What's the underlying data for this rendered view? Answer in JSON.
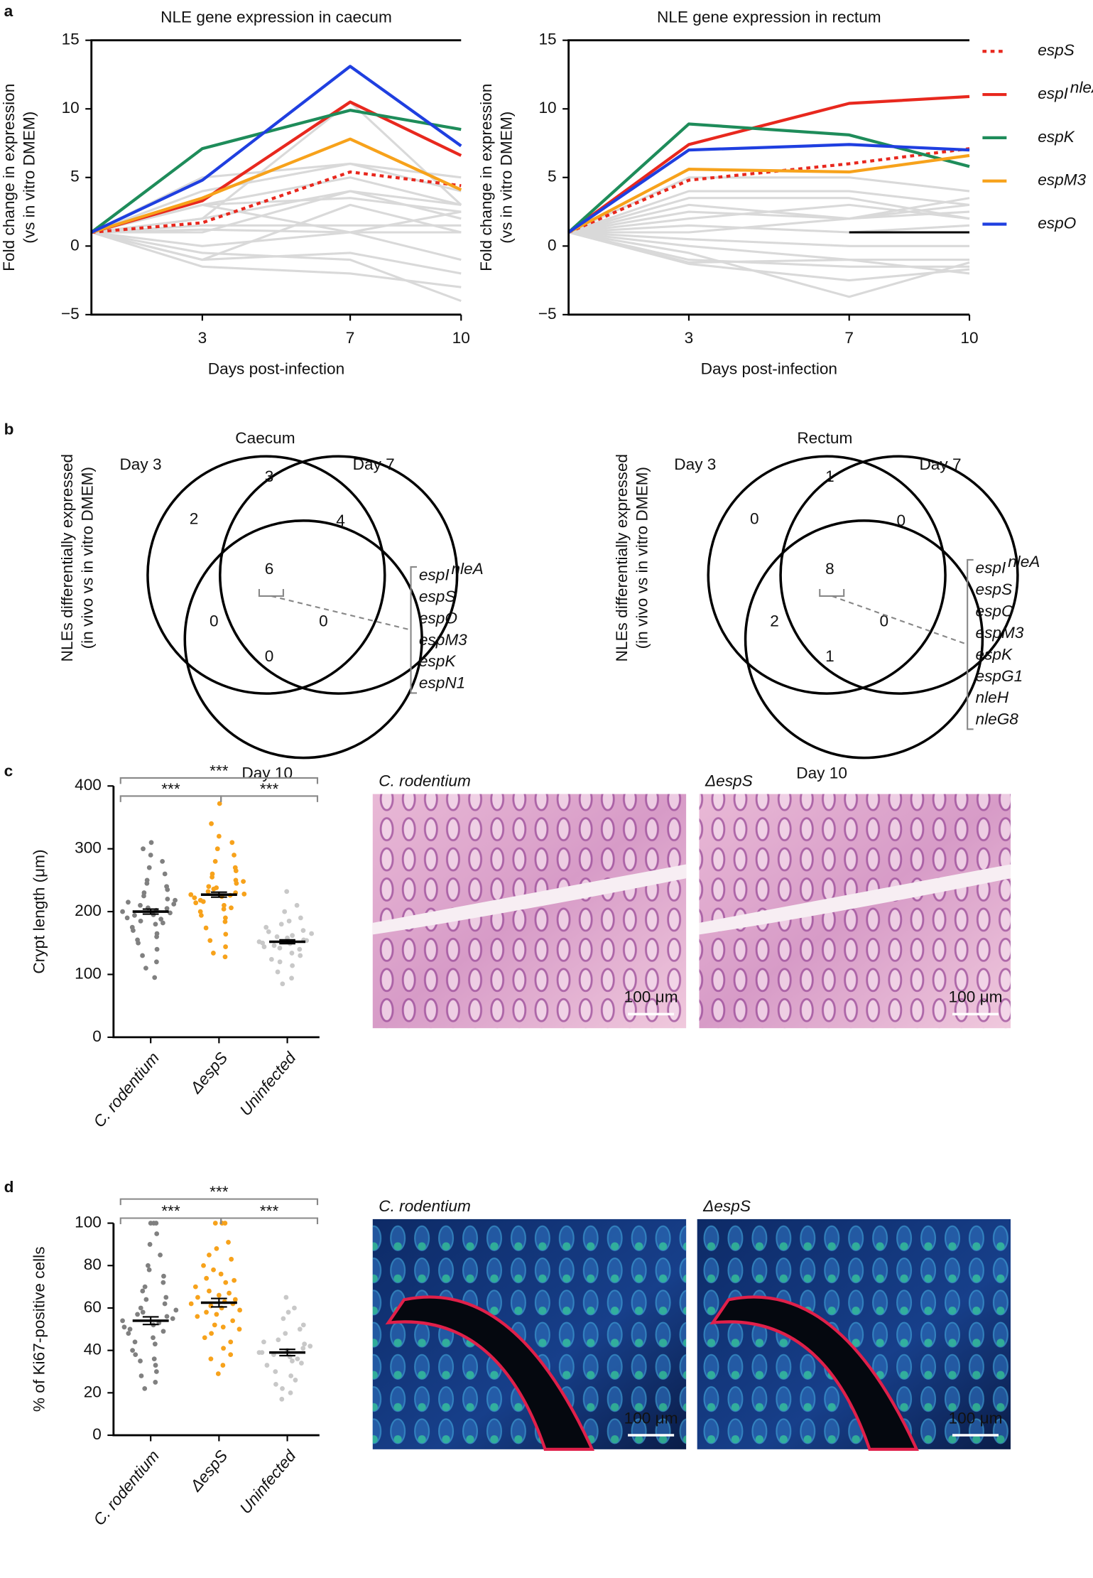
{
  "panel_labels": [
    "a",
    "b",
    "c",
    "d"
  ],
  "chart_data": [
    {
      "type": "line",
      "title": "NLE gene expression in caecum",
      "xlabel": "Days post-infection",
      "ylabel": [
        "Fold change in expression",
        "(vs in vitro DMEM)"
      ],
      "x": [
        0,
        3,
        7,
        10
      ],
      "xlim": [
        0,
        10
      ],
      "xticks": [
        3,
        7,
        10
      ],
      "ylim": [
        -5,
        15
      ],
      "yticks": [
        {
          "value": -5,
          "label": "−5"
        },
        0,
        5,
        10,
        15
      ],
      "series": [
        {
          "color": "#d9d9d9",
          "values": [
            1,
            5,
            6,
            5
          ]
        },
        {
          "color": "#d9d9d9",
          "values": [
            1,
            4,
            6,
            4
          ]
        },
        {
          "color": "#d9d9d9",
          "values": [
            1,
            3,
            5,
            3
          ]
        },
        {
          "color": "#d9d9d9",
          "values": [
            1,
            2,
            4,
            3
          ]
        },
        {
          "color": "#d9d9d9",
          "values": [
            1,
            3,
            3.5,
            2.5
          ]
        },
        {
          "color": "#d9d9d9",
          "values": [
            1,
            1.5,
            1.5,
            1.5
          ]
        },
        {
          "color": "#d9d9d9",
          "values": [
            1,
            1.2,
            1,
            1
          ]
        },
        {
          "color": "#d9d9d9",
          "values": [
            1,
            0,
            1,
            -1
          ]
        },
        {
          "color": "#d9d9d9",
          "values": [
            1,
            -1,
            -0.5,
            -2
          ]
        },
        {
          "color": "#d9d9d9",
          "values": [
            1,
            -1.5,
            -2,
            -3
          ]
        },
        {
          "color": "#d9d9d9",
          "values": [
            1,
            -0.5,
            -1,
            -4
          ]
        },
        {
          "color": "#d9d9d9",
          "values": [
            1,
            2,
            10.5,
            3
          ]
        },
        {
          "color": "#d9d9d9",
          "values": [
            1,
            1,
            4,
            2
          ]
        },
        {
          "color": "#d9d9d9",
          "values": [
            1,
            -1,
            3,
            1
          ]
        },
        {
          "color": "#d9d9d9",
          "values": [
            1,
            3,
            1,
            2.5
          ]
        },
        {
          "name": "espS",
          "color": "#e8281e",
          "dash": true,
          "values": [
            1,
            1.7,
            5.4,
            4.4
          ]
        },
        {
          "name": "espI",
          "superscript": "nleA",
          "color": "#e8281e",
          "values": [
            1,
            3.3,
            10.5,
            6.6
          ]
        },
        {
          "name": "espK",
          "color": "#1e8c5a",
          "values": [
            1,
            7.1,
            9.9,
            8.5
          ]
        },
        {
          "name": "espM3",
          "color": "#f7a21b",
          "values": [
            1,
            3.5,
            7.8,
            4.1
          ]
        },
        {
          "name": "espO",
          "color": "#1f3fe0",
          "values": [
            1,
            4.8,
            13.1,
            7.3
          ]
        }
      ]
    },
    {
      "type": "line",
      "title": "NLE gene expression in rectum",
      "legend": "right",
      "xlabel": "Days post-infection",
      "ylabel": [
        "Fold change in expression",
        "(vs in vitro DMEM)"
      ],
      "x": [
        0,
        3,
        7,
        10
      ],
      "xlim": [
        0,
        10
      ],
      "xticks": [
        3,
        7,
        10
      ],
      "ylim": [
        -5,
        15
      ],
      "yticks": [
        {
          "value": -5,
          "label": "−5"
        },
        0,
        5,
        10,
        15
      ],
      "series": [
        {
          "color": "#d9d9d9",
          "values": [
            1,
            5,
            5,
            4
          ]
        },
        {
          "color": "#d9d9d9",
          "values": [
            1,
            4,
            4,
            3
          ]
        },
        {
          "color": "#d9d9d9",
          "values": [
            1,
            3,
            2,
            3
          ]
        },
        {
          "color": "#d9d9d9",
          "values": [
            1,
            2,
            3,
            2
          ]
        },
        {
          "color": "#d9d9d9",
          "values": [
            1,
            1.5,
            1,
            1.5
          ]
        },
        {
          "color": "#d9d9d9",
          "values": [
            1,
            1,
            2,
            2.5
          ]
        },
        {
          "color": "#d9d9d9",
          "values": [
            1,
            0.5,
            0,
            0
          ]
        },
        {
          "color": "#d9d9d9",
          "values": [
            1,
            -1,
            -1.5,
            -1.5
          ]
        },
        {
          "color": "#d9d9d9",
          "values": [
            1,
            -1.3,
            -2.5,
            -1.7
          ]
        },
        {
          "color": "#d9d9d9",
          "values": [
            1,
            -0.5,
            -3.7,
            -1.2
          ]
        },
        {
          "color": "#d9d9d9",
          "values": [
            1,
            0,
            -1,
            -1
          ]
        },
        {
          "color": "#d9d9d9",
          "values": [
            1,
            2.5,
            2,
            3.5
          ]
        },
        {
          "color": "#d9d9d9",
          "values": [
            1,
            3.5,
            3.5,
            2
          ]
        },
        {
          "color": "#d9d9d9",
          "values": [
            1,
            -1.2,
            -1,
            -2
          ]
        },
        {
          "color": "#000000",
          "values": [
            null,
            null,
            1,
            1
          ]
        },
        {
          "name": "espS",
          "color": "#e8281e",
          "dash": true,
          "values": [
            1,
            4.8,
            6.0,
            7.1
          ]
        },
        {
          "name": "espI",
          "superscript": "nleA",
          "color": "#e8281e",
          "values": [
            1,
            7.4,
            10.4,
            10.9
          ]
        },
        {
          "name": "espK",
          "color": "#1e8c5a",
          "values": [
            1,
            8.9,
            8.1,
            5.8
          ]
        },
        {
          "name": "espM3",
          "color": "#f7a21b",
          "values": [
            1,
            5.6,
            5.4,
            6.6
          ]
        },
        {
          "name": "espO",
          "color": "#1f3fe0",
          "values": [
            1,
            7.0,
            7.4,
            7.0
          ]
        }
      ]
    },
    {
      "type": "venn",
      "title": "Caecum",
      "ylabel": [
        "NLEs differentially expressed",
        "(in vivo vs in vitro DMEM)"
      ],
      "sets": [
        "Day 3",
        "Day 7",
        "Day 10"
      ],
      "region_counts": [
        2,
        3,
        4,
        0,
        6,
        0,
        0
      ],
      "genes": [
        {
          "name": "espI",
          "superscript": "nleA",
          "color": "#e8281e"
        },
        {
          "name": "espS",
          "color": "#e8281e"
        },
        {
          "name": "espO",
          "color": "#1f3fe0"
        },
        {
          "name": "espM3",
          "color": "#f7a21b"
        },
        {
          "name": "espK",
          "color": "#1e8c5a"
        },
        {
          "name": "espN1",
          "color": "#000000"
        }
      ]
    },
    {
      "type": "venn",
      "title": "Rectum",
      "ylabel": [
        "NLEs differentially expressed",
        "(in vivo vs in vitro DMEM)"
      ],
      "sets": [
        "Day 3",
        "Day 7",
        "Day 10"
      ],
      "region_counts": [
        0,
        1,
        0,
        2,
        8,
        0,
        1
      ],
      "genes": [
        {
          "name": "espI",
          "superscript": "nleA",
          "color": "#e8281e"
        },
        {
          "name": "espS",
          "color": "#e8281e"
        },
        {
          "name": "espO",
          "color": "#1f3fe0"
        },
        {
          "name": "espM3",
          "color": "#f7a21b"
        },
        {
          "name": "espK",
          "color": "#1e8c5a"
        },
        {
          "name": "espG1",
          "color": "#000000"
        },
        {
          "name": "nleH",
          "color": "#000000"
        },
        {
          "name": "nleG8",
          "color": "#000000"
        }
      ]
    },
    {
      "type": "dot",
      "ylabel": "Crypt length (μm)",
      "categories": [
        "C. rodentium",
        "ΔespS",
        "Uninfected"
      ],
      "ylim": [
        0,
        400
      ],
      "yticks": [
        0,
        100,
        200,
        300,
        400
      ],
      "groups": [
        {
          "color": "#808080",
          "mean": 200,
          "sem": 4,
          "values": [
            200,
            205,
            195,
            210,
            190,
            220,
            180,
            230,
            170,
            240,
            160,
            250,
            150,
            260,
            140,
            270,
            130,
            280,
            120,
            290,
            110,
            300,
            95,
            310,
            185,
            215,
            198,
            202,
            225,
            175,
            235,
            165,
            245,
            155,
            212,
            188,
            206,
            194,
            218,
            182
          ]
        },
        {
          "color": "#f7a21b",
          "mean": 227,
          "sem": 4,
          "values": [
            227,
            230,
            224,
            240,
            214,
            250,
            204,
            260,
            194,
            270,
            184,
            280,
            174,
            290,
            164,
            300,
            154,
            310,
            144,
            320,
            134,
            340,
            128,
            372,
            232,
            222,
            245,
            210,
            255,
            200,
            265,
            190,
            236,
            218,
            228,
            226,
            238,
            216,
            248,
            206
          ]
        },
        {
          "color": "#c8c8c8",
          "mean": 152,
          "sem": 3,
          "values": [
            152,
            155,
            149,
            160,
            144,
            170,
            134,
            180,
            124,
            190,
            114,
            200,
            104,
            210,
            94,
            232,
            85,
            165,
            140,
            158,
            146,
            175,
            130,
            185,
            120,
            150,
            154,
            162,
            142,
            168
          ]
        }
      ],
      "comparisons": [
        {
          "groups": [
            0,
            2
          ],
          "label": "***"
        },
        {
          "groups": [
            0,
            1
          ],
          "label": "***"
        },
        {
          "groups": [
            1,
            2
          ],
          "label": "***"
        }
      ]
    },
    {
      "type": "dot",
      "ylabel": "% of Ki67-positive cells",
      "categories": [
        "C. rodentium",
        "ΔespS",
        "Uninfected"
      ],
      "ylim": [
        0,
        100
      ],
      "yticks": [
        0,
        20,
        40,
        60,
        80,
        100
      ],
      "groups": [
        {
          "color": "#808080",
          "mean": 54,
          "sem": 1.8,
          "values": [
            54,
            56,
            52,
            60,
            48,
            65,
            43,
            70,
            38,
            75,
            33,
            80,
            28,
            85,
            25,
            90,
            22,
            95,
            100,
            100,
            57,
            51,
            62,
            46,
            68,
            40,
            72,
            36,
            58,
            50,
            55,
            53,
            64,
            44,
            100,
            30,
            78,
            35,
            59,
            49
          ]
        },
        {
          "color": "#f7a21b",
          "mean": 62.5,
          "sem": 2,
          "values": [
            62,
            64,
            60,
            68,
            56,
            73,
            51,
            78,
            46,
            83,
            41,
            88,
            36,
            91,
            33,
            29,
            100,
            100,
            100,
            66,
            58,
            70,
            54,
            76,
            48,
            80,
            44,
            63,
            61,
            65,
            59,
            72,
            52,
            85,
            38,
            67,
            57,
            74,
            50,
            62
          ]
        },
        {
          "color": "#c8c8c8",
          "mean": 39,
          "sem": 1.5,
          "values": [
            39,
            41,
            37,
            45,
            33,
            50,
            28,
            55,
            24,
            60,
            20,
            65,
            17,
            42,
            36,
            48,
            30,
            52,
            26,
            40,
            38,
            44,
            34,
            58,
            22,
            39,
            43,
            35
          ]
        }
      ],
      "comparisons": [
        {
          "groups": [
            0,
            2
          ],
          "label": "***"
        },
        {
          "groups": [
            0,
            1
          ],
          "label": "***"
        },
        {
          "groups": [
            1,
            2
          ],
          "label": "***"
        }
      ]
    }
  ],
  "micrographs": [
    {
      "title": "C. rodentium",
      "scale_bar": "100 μm"
    },
    {
      "title": "ΔespS",
      "scale_bar": "100 μm"
    },
    {
      "title": "C. rodentium",
      "scale_bar": "100 μm"
    },
    {
      "title": "ΔespS",
      "scale_bar": "100 μm"
    }
  ]
}
